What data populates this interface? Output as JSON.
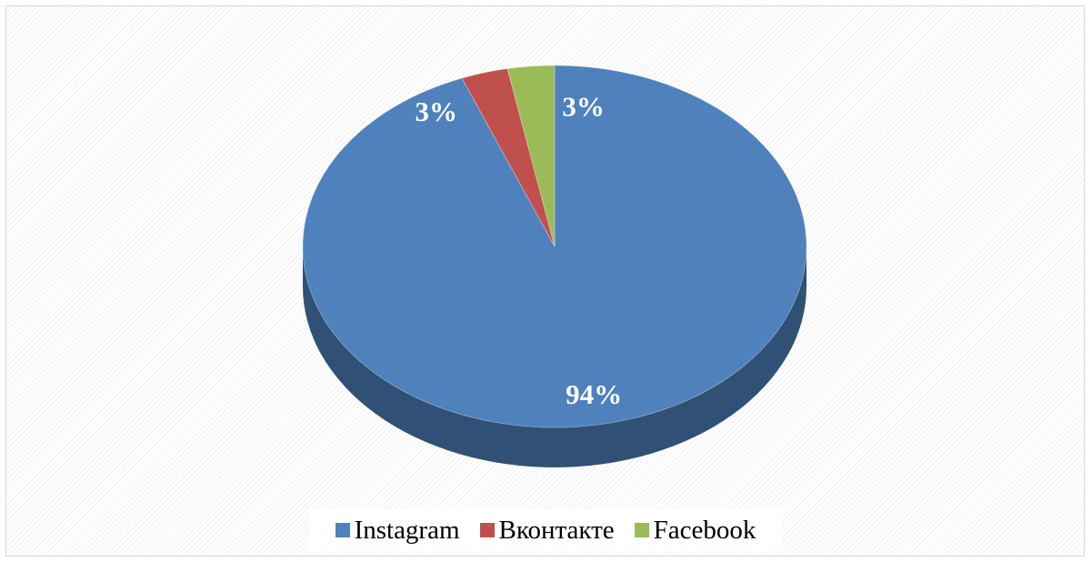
{
  "chart_data": {
    "type": "pie",
    "style": "3d",
    "title": "",
    "categories": [
      "Instagram",
      "Вконтакте",
      "Facebook"
    ],
    "values": [
      94,
      3,
      3
    ],
    "value_labels": [
      "94%",
      "3%",
      "3%"
    ],
    "colors": [
      "#4f81bd",
      "#c0504d",
      "#9bbb59"
    ],
    "legend_position": "bottom"
  },
  "legend": {
    "items": [
      {
        "label": "Instagram",
        "color": "#4f81bd"
      },
      {
        "label": "Вконтакте",
        "color": "#c0504d"
      },
      {
        "label": "Facebook",
        "color": "#9bbb59"
      }
    ]
  }
}
